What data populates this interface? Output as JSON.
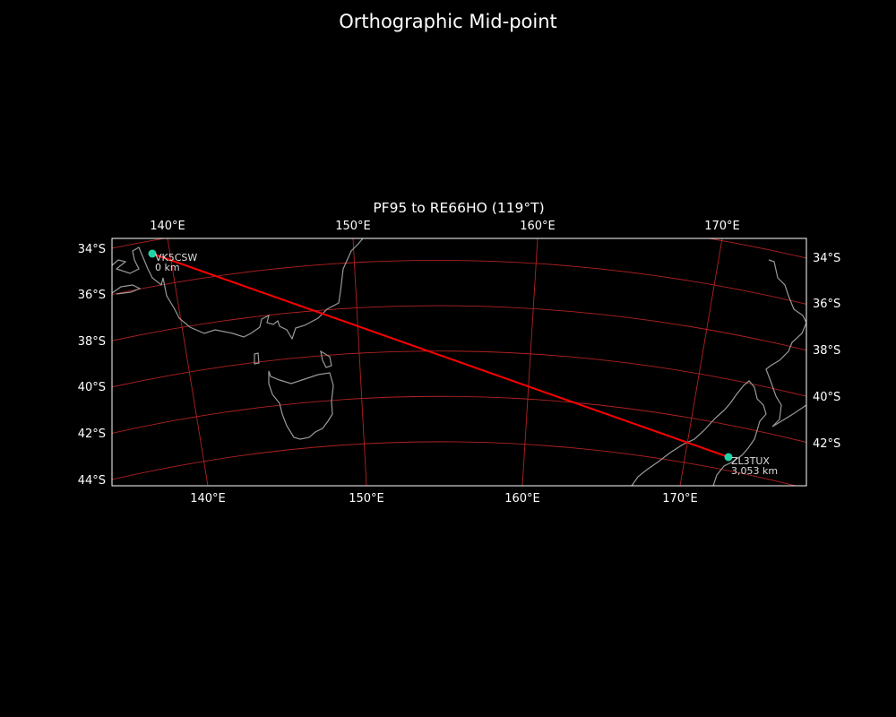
{
  "figure_title": "Orthographic Mid-point",
  "chart_data": {
    "type": "map",
    "projection": "orthographic",
    "title": "PF95 to RE66HO (119°T)",
    "extent": {
      "lon": [
        134,
        178
      ],
      "lat": [
        -44.5,
        -33.5
      ]
    },
    "grid": true,
    "grid_color": "#b22222",
    "coastline_color": "#999999",
    "path_color": "#ff0000",
    "marker_color": "#1fd3a5",
    "top_ticks": [
      "140°E",
      "150°E",
      "160°E",
      "170°E"
    ],
    "bottom_ticks": [
      "140°E",
      "150°E",
      "160°E",
      "170°E"
    ],
    "left_ticks": [
      "34°S",
      "36°S",
      "38°S",
      "40°S",
      "42°S",
      "44°S"
    ],
    "right_ticks": [
      "34°S",
      "36°S",
      "38°S",
      "40°S",
      "42°S"
    ],
    "points": [
      {
        "callsign": "VK5CSW",
        "distance": "0 km",
        "lon": 138.5,
        "lat": -34.5
      },
      {
        "callsign": "ZL3TUX",
        "distance": "3,053 km",
        "lon": 172.6,
        "lat": -43.5
      }
    ]
  }
}
